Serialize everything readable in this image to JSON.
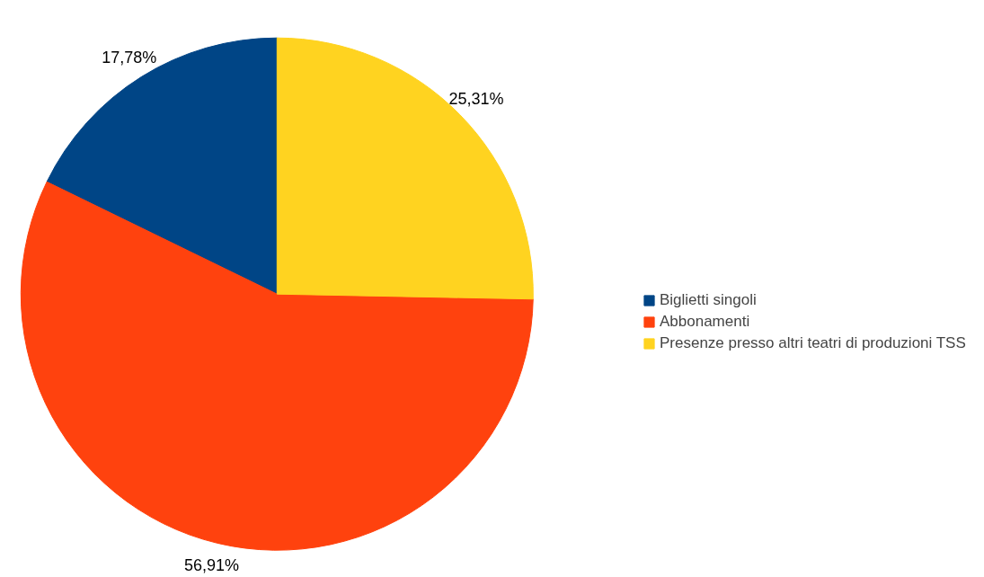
{
  "chart_data": {
    "type": "pie",
    "categories": [
      "Biglietti singoli",
      "Abbonamenti",
      "Presenze presso altri teatri di produzioni TSS"
    ],
    "values": [
      17.78,
      56.91,
      25.31
    ],
    "colors": [
      "#004586",
      "#ff420e",
      "#ffd320"
    ],
    "value_labels": [
      "17,78%",
      "56,91%",
      "25,31%"
    ],
    "legend": "right"
  }
}
